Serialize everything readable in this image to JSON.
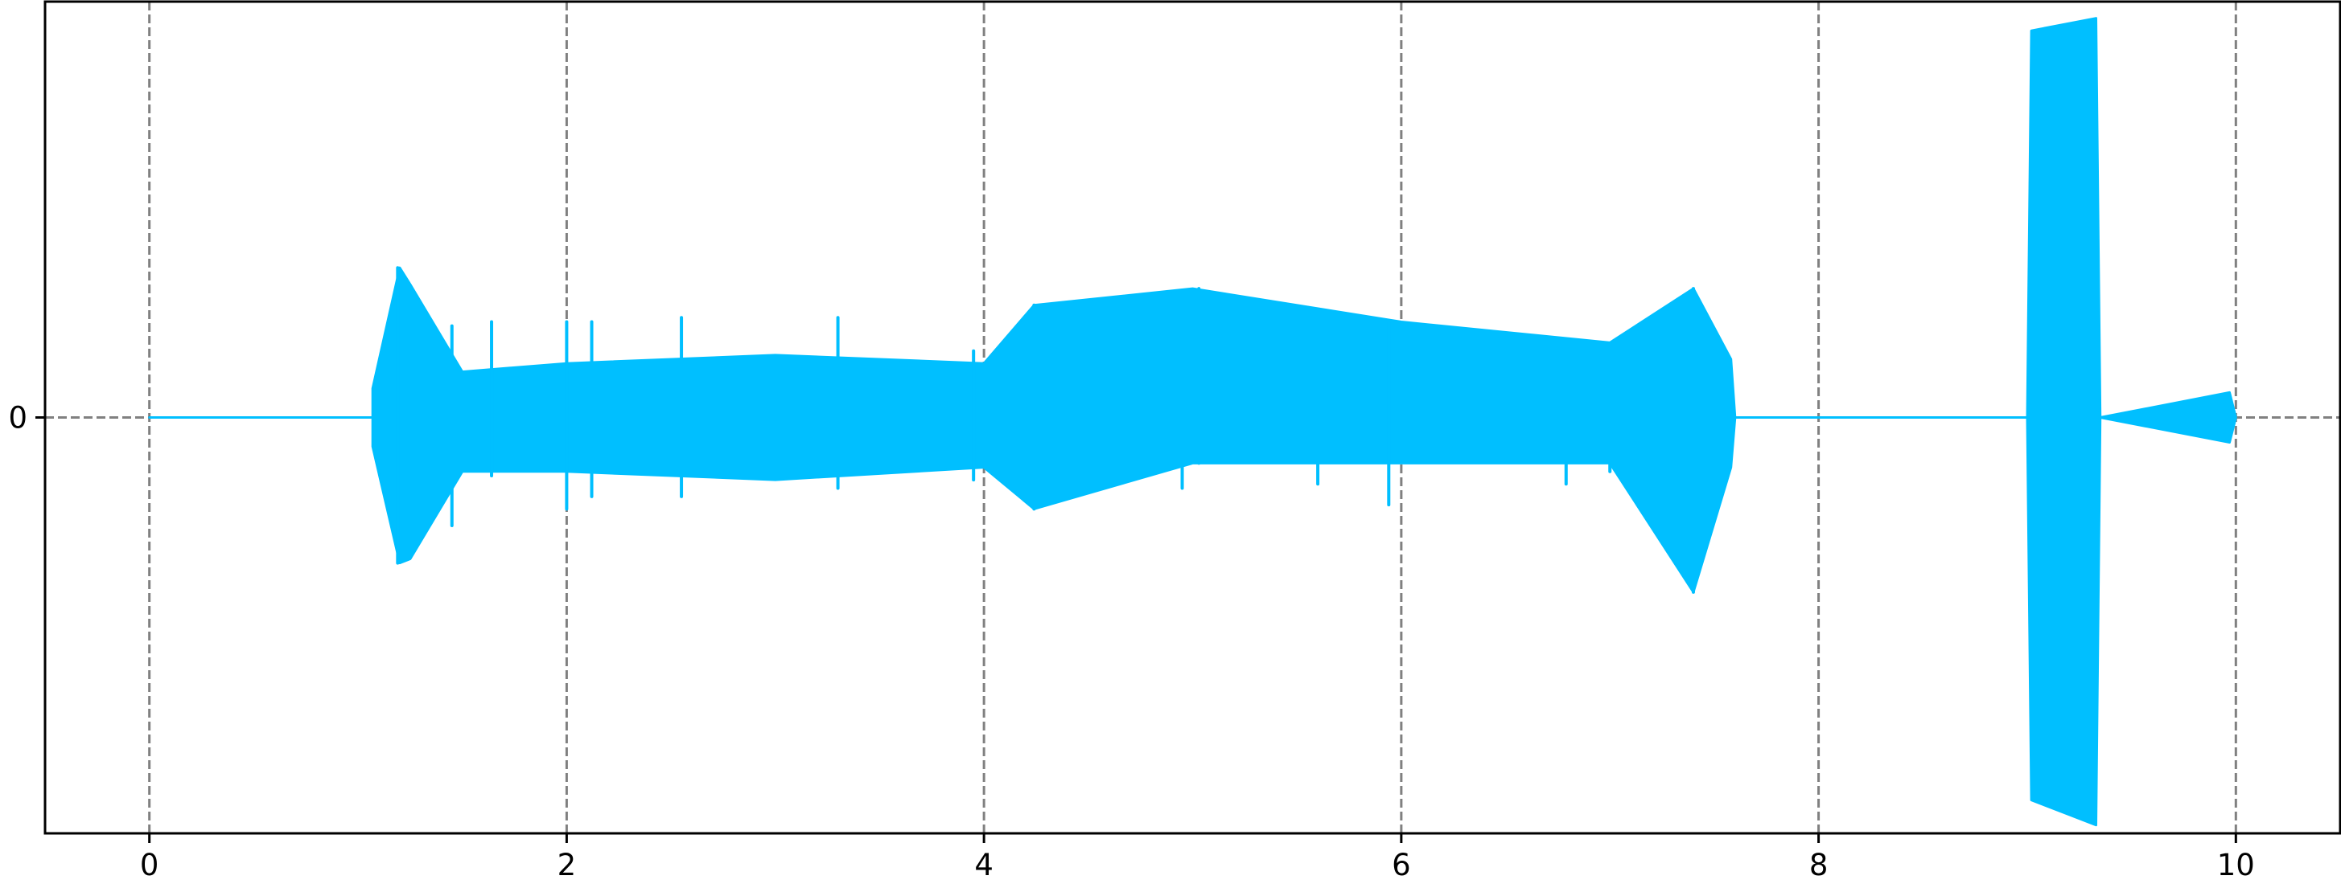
{
  "chart_data": {
    "type": "line",
    "title": "",
    "xlabel": "",
    "ylabel": "",
    "xlim": [
      -0.5,
      10.5
    ],
    "ylim": [
      -1.0,
      1.0
    ],
    "x_ticks": [
      0,
      2,
      4,
      6,
      8,
      10
    ],
    "x_tick_labels": [
      "0",
      "2",
      "4",
      "6",
      "8",
      "10"
    ],
    "y_ticks": [
      0
    ],
    "y_tick_labels": [
      "0"
    ],
    "grid": {
      "x": "dashed",
      "y": "dashed at 0",
      "color": "#808080"
    },
    "legend": "none",
    "series": [
      {
        "color": "#00bfff",
        "envelope": [
          {
            "x": 0.0,
            "min": 0.0,
            "max": 0.0
          },
          {
            "x": 1.07,
            "min": 0.0,
            "max": 0.0
          },
          {
            "x": 1.07,
            "min": -0.07,
            "max": 0.07
          },
          {
            "x": 1.2,
            "min": -0.35,
            "max": 0.36
          },
          {
            "x": 1.25,
            "min": -0.34,
            "max": 0.32
          },
          {
            "x": 1.5,
            "min": -0.13,
            "max": 0.11
          },
          {
            "x": 2.0,
            "min": -0.13,
            "max": 0.13
          },
          {
            "x": 3.0,
            "min": -0.15,
            "max": 0.15
          },
          {
            "x": 4.0,
            "min": -0.12,
            "max": 0.13
          },
          {
            "x": 4.24,
            "min": -0.22,
            "max": 0.27
          },
          {
            "x": 5.0,
            "min": -0.11,
            "max": 0.31
          },
          {
            "x": 6.0,
            "min": -0.11,
            "max": 0.23
          },
          {
            "x": 7.0,
            "min": -0.11,
            "max": 0.18
          },
          {
            "x": 7.4,
            "min": -0.42,
            "max": 0.31
          },
          {
            "x": 7.58,
            "min": -0.12,
            "max": 0.14
          },
          {
            "x": 7.6,
            "min": 0.0,
            "max": 0.0
          },
          {
            "x": 9.0,
            "min": 0.0,
            "max": 0.0
          },
          {
            "x": 9.02,
            "min": -0.92,
            "max": 0.93
          },
          {
            "x": 9.33,
            "min": -0.98,
            "max": 0.96
          },
          {
            "x": 9.35,
            "min": 0.0,
            "max": 0.0
          },
          {
            "x": 9.97,
            "min": -0.06,
            "max": 0.06
          },
          {
            "x": 10.0,
            "min": 0.0,
            "max": 0.0
          }
        ],
        "spikes": [
          {
            "x": 1.19,
            "min": -0.35,
            "max": 0.36
          },
          {
            "x": 1.24,
            "min": -0.34,
            "max": 0.32
          },
          {
            "x": 1.45,
            "min": -0.26,
            "max": 0.22
          },
          {
            "x": 1.64,
            "min": -0.14,
            "max": 0.23
          },
          {
            "x": 2.0,
            "min": -0.22,
            "max": 0.23
          },
          {
            "x": 2.12,
            "min": -0.19,
            "max": 0.23
          },
          {
            "x": 2.55,
            "min": -0.19,
            "max": 0.24
          },
          {
            "x": 3.3,
            "min": -0.17,
            "max": 0.24
          },
          {
            "x": 3.95,
            "min": -0.15,
            "max": 0.16
          },
          {
            "x": 4.24,
            "min": -0.22,
            "max": 0.27
          },
          {
            "x": 4.95,
            "min": -0.17,
            "max": 0.17
          },
          {
            "x": 5.03,
            "min": -0.11,
            "max": 0.31
          },
          {
            "x": 5.6,
            "min": -0.16,
            "max": 0.25
          },
          {
            "x": 5.94,
            "min": -0.21,
            "max": 0.23
          },
          {
            "x": 6.79,
            "min": -0.16,
            "max": 0.18
          },
          {
            "x": 7.0,
            "min": -0.13,
            "max": 0.16
          },
          {
            "x": 7.4,
            "min": -0.42,
            "max": 0.31
          }
        ]
      }
    ]
  }
}
